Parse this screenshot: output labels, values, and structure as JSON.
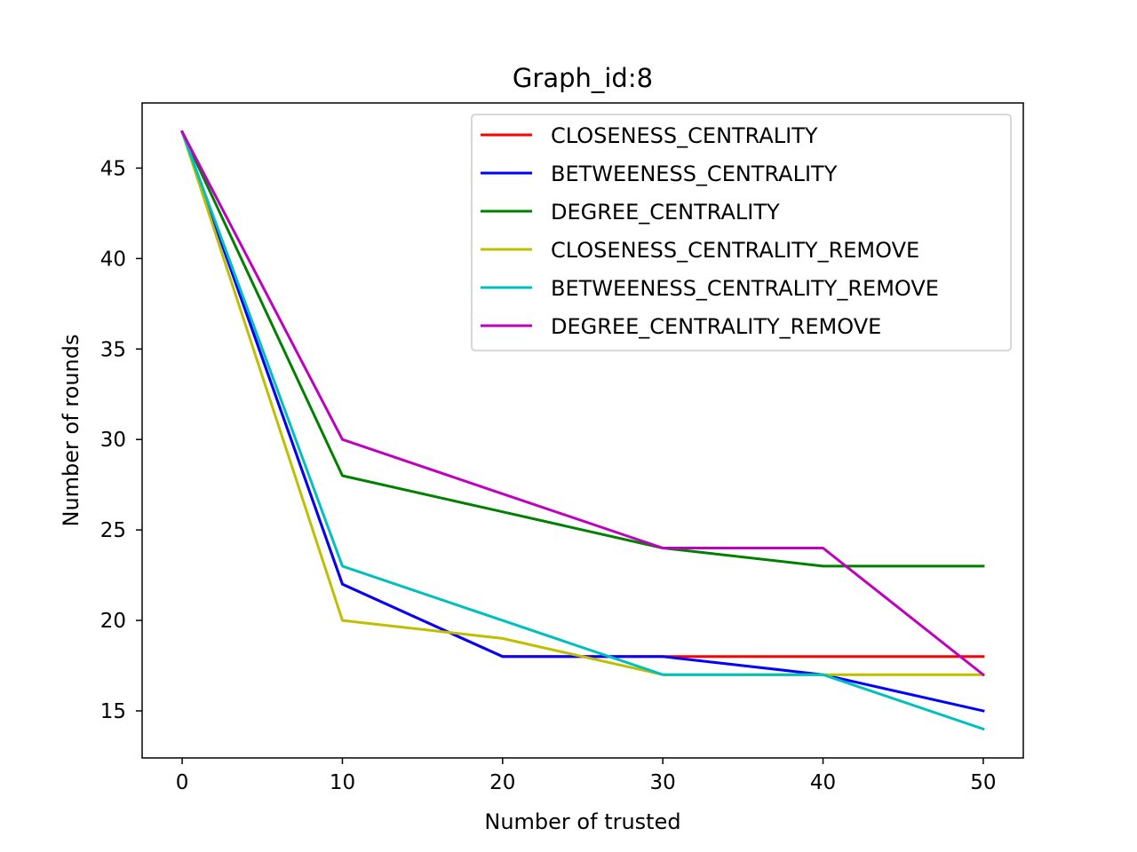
{
  "chart_data": {
    "type": "line",
    "title": "Graph_id:8",
    "xlabel": "Number of trusted",
    "ylabel": "Number of rounds",
    "x": [
      0,
      10,
      20,
      30,
      40,
      50
    ],
    "xlim": [
      -2.5,
      52.5
    ],
    "ylim": [
      12.4,
      48.6
    ],
    "xticks": [
      0,
      10,
      20,
      30,
      40,
      50
    ],
    "yticks": [
      15,
      20,
      25,
      30,
      35,
      40,
      45
    ],
    "grid": false,
    "legend_position": "top-right",
    "series": [
      {
        "name": "CLOSENESS_CENTRALITY",
        "color": "#ff0000",
        "values": [
          47,
          22,
          18,
          18,
          18,
          18
        ]
      },
      {
        "name": "BETWEENESS_CENTRALITY",
        "color": "#0000ff",
        "values": [
          47,
          22,
          18,
          18,
          17,
          15
        ]
      },
      {
        "name": "DEGREE_CENTRALITY",
        "color": "#008000",
        "values": [
          47,
          28,
          26,
          24,
          23,
          23
        ]
      },
      {
        "name": "CLOSENESS_CENTRALITY_REMOVE",
        "color": "#bfbf00",
        "values": [
          47,
          20,
          19,
          17,
          17,
          17
        ]
      },
      {
        "name": "BETWEENESS_CENTRALITY_REMOVE",
        "color": "#00bfbf",
        "values": [
          47,
          23,
          20,
          17,
          17,
          14
        ]
      },
      {
        "name": "DEGREE_CENTRALITY_REMOVE",
        "color": "#bf00bf",
        "values": [
          47,
          30,
          27,
          24,
          24,
          17
        ]
      }
    ]
  }
}
